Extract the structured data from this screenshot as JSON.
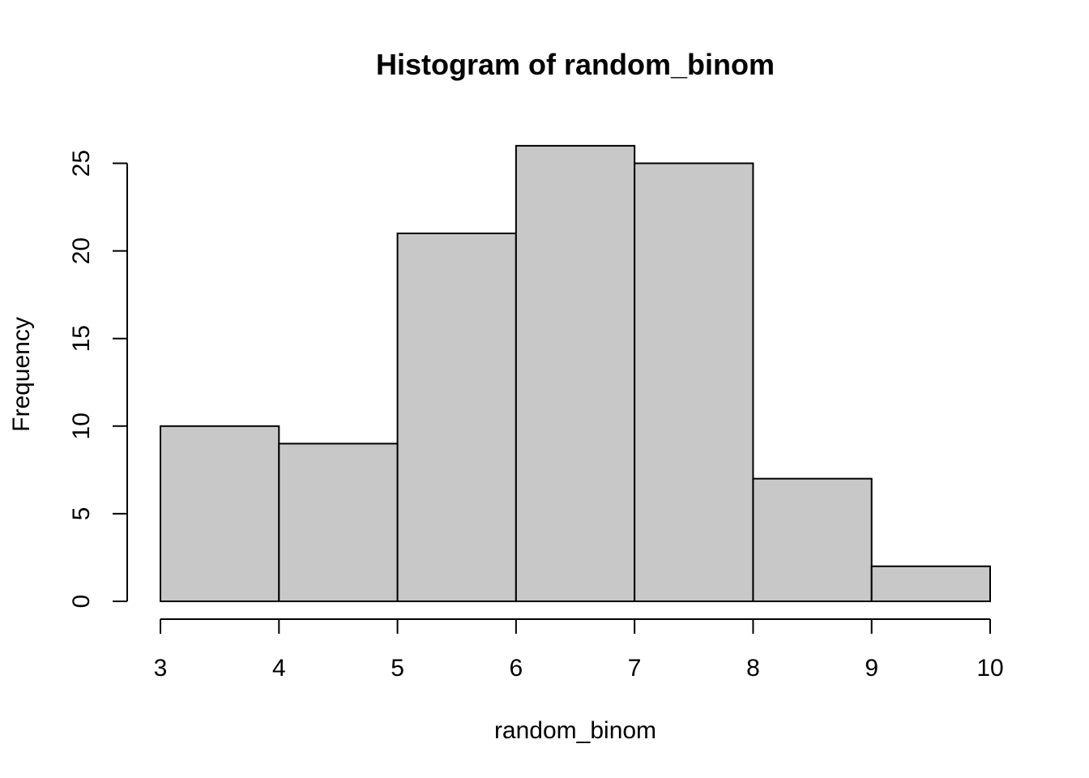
{
  "chart_data": {
    "type": "bar",
    "title": "Histogram of random_binom",
    "xlabel": "random_binom",
    "ylabel": "Frequency",
    "bins": [
      {
        "from": 3,
        "to": 4,
        "count": 10
      },
      {
        "from": 4,
        "to": 5,
        "count": 9
      },
      {
        "from": 5,
        "to": 6,
        "count": 21
      },
      {
        "from": 6,
        "to": 7,
        "count": 26
      },
      {
        "from": 7,
        "to": 8,
        "count": 25
      },
      {
        "from": 8,
        "to": 9,
        "count": 7
      },
      {
        "from": 9,
        "to": 10,
        "count": 2
      }
    ],
    "xlim": [
      3,
      10
    ],
    "ylim": [
      0,
      26
    ],
    "x_ticks": [
      3,
      4,
      5,
      6,
      7,
      8,
      9,
      10
    ],
    "y_ticks": [
      0,
      5,
      10,
      15,
      20,
      25
    ],
    "bar_color": "#c8c8c8",
    "grid": false
  }
}
